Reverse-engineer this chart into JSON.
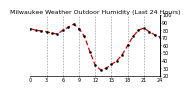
{
  "title": "Milwaukee Weather Outdoor Humidity (Last 24 Hours)",
  "x_values": [
    0,
    1,
    2,
    3,
    4,
    5,
    6,
    7,
    8,
    9,
    10,
    11,
    12,
    13,
    14,
    15,
    16,
    17,
    18,
    19,
    20,
    21,
    22,
    23,
    24
  ],
  "y_values": [
    82,
    80,
    79,
    78,
    76,
    75,
    80,
    84,
    88,
    82,
    72,
    52,
    34,
    28,
    30,
    35,
    40,
    48,
    60,
    72,
    80,
    83,
    78,
    74,
    71
  ],
  "line_color": "#dd0000",
  "marker_color": "#000000",
  "background_color": "#ffffff",
  "grid_color": "#888888",
  "ylim": [
    20,
    100
  ],
  "yticks": [
    20,
    30,
    40,
    50,
    60,
    70,
    80,
    90,
    100
  ],
  "ytick_labels": [
    "20",
    "30",
    "40",
    "50",
    "60",
    "70",
    "80",
    "90",
    "100"
  ],
  "xlim": [
    0,
    24
  ],
  "xticks": [
    0,
    3,
    6,
    9,
    12,
    15,
    18,
    21,
    24
  ],
  "xtick_labels": [
    "0",
    "3",
    "6",
    "9",
    "12",
    "15",
    "18",
    "21",
    "24"
  ],
  "title_fontsize": 4.5,
  "tick_fontsize": 3.5,
  "linewidth": 0.9,
  "markersize": 1.5,
  "vgrid_positions": [
    3,
    6,
    9,
    12,
    15,
    18,
    21
  ]
}
